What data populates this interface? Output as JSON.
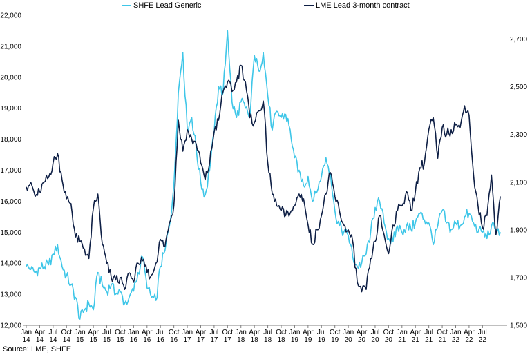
{
  "chart_data": {
    "type": "line",
    "legend_position": "top",
    "grid": false,
    "x_ticks": [
      {
        "month": "Jan",
        "year": "14"
      },
      {
        "month": "Apr",
        "year": "14"
      },
      {
        "month": "Jul",
        "year": "14"
      },
      {
        "month": "Oct",
        "year": "14"
      },
      {
        "month": "Jan",
        "year": "15"
      },
      {
        "month": "Apr",
        "year": "15"
      },
      {
        "month": "Jul",
        "year": "15"
      },
      {
        "month": "Oct",
        "year": "15"
      },
      {
        "month": "Jan",
        "year": "16"
      },
      {
        "month": "Apr",
        "year": "16"
      },
      {
        "month": "Jul",
        "year": "16"
      },
      {
        "month": "Oct",
        "year": "16"
      },
      {
        "month": "Jan",
        "year": "17"
      },
      {
        "month": "Apr",
        "year": "17"
      },
      {
        "month": "Jul",
        "year": "17"
      },
      {
        "month": "Oct",
        "year": "17"
      },
      {
        "month": "Jan",
        "year": "18"
      },
      {
        "month": "Apr",
        "year": "18"
      },
      {
        "month": "Jul",
        "year": "18"
      },
      {
        "month": "Oct",
        "year": "18"
      },
      {
        "month": "Jan",
        "year": "19"
      },
      {
        "month": "Apr",
        "year": "19"
      },
      {
        "month": "Jul",
        "year": "19"
      },
      {
        "month": "Oct",
        "year": "19"
      },
      {
        "month": "Jan",
        "year": "20"
      },
      {
        "month": "Apr",
        "year": "20"
      },
      {
        "month": "Jul",
        "year": "20"
      },
      {
        "month": "Oct",
        "year": "20"
      },
      {
        "month": "Jan",
        "year": "21"
      },
      {
        "month": "Apr",
        "year": "21"
      },
      {
        "month": "Jul",
        "year": "21"
      },
      {
        "month": "Oct",
        "year": "21"
      },
      {
        "month": "Jan",
        "year": "22"
      },
      {
        "month": "Apr",
        "year": "22"
      },
      {
        "month": "Jul",
        "year": "22"
      }
    ],
    "y_left": {
      "min": 12000,
      "max": 22000,
      "step": 1000,
      "tick_labels": [
        "12,000",
        "13,000",
        "14,000",
        "15,000",
        "16,000",
        "17,000",
        "18,000",
        "19,000",
        "20,000",
        "21,000",
        "22,000"
      ]
    },
    "y_right": {
      "min": 1500,
      "max": 2800,
      "step": 200,
      "tick_labels": [
        "1,500",
        "1,700",
        "1,900",
        "2,100",
        "2,300",
        "2,500",
        "2,700"
      ]
    },
    "series": [
      {
        "name": "SHFE Lead Generic",
        "axis": "left",
        "color": "#3ec6e8",
        "points": [
          [
            "2014-01",
            13900
          ],
          [
            "2014-02",
            13800
          ],
          [
            "2014-03",
            13700
          ],
          [
            "2014-04",
            13850
          ],
          [
            "2014-05",
            13900
          ],
          [
            "2014-06",
            13950
          ],
          [
            "2014-07",
            14300
          ],
          [
            "2014-08",
            14600
          ],
          [
            "2014-09",
            13900
          ],
          [
            "2014-10",
            13600
          ],
          [
            "2014-11",
            13300
          ],
          [
            "2014-12",
            12900
          ],
          [
            "2015-01",
            12200
          ],
          [
            "2015-02",
            12500
          ],
          [
            "2015-03",
            12700
          ],
          [
            "2015-04",
            12500
          ],
          [
            "2015-05",
            13700
          ],
          [
            "2015-06",
            13300
          ],
          [
            "2015-07",
            13100
          ],
          [
            "2015-08",
            13300
          ],
          [
            "2015-09",
            13000
          ],
          [
            "2015-10",
            13100
          ],
          [
            "2015-11",
            12700
          ],
          [
            "2015-12",
            12900
          ],
          [
            "2016-01",
            13100
          ],
          [
            "2016-02",
            13700
          ],
          [
            "2016-03",
            14200
          ],
          [
            "2016-04",
            13200
          ],
          [
            "2016-05",
            12900
          ],
          [
            "2016-06",
            12800
          ],
          [
            "2016-07",
            13900
          ],
          [
            "2016-08",
            14400
          ],
          [
            "2016-09",
            15200
          ],
          [
            "2016-10",
            16500
          ],
          [
            "2016-11",
            19500
          ],
          [
            "2016-12",
            20800
          ],
          [
            "2017-01",
            18300
          ],
          [
            "2017-02",
            18700
          ],
          [
            "2017-03",
            17700
          ],
          [
            "2017-04",
            16600
          ],
          [
            "2017-05",
            16200
          ],
          [
            "2017-06",
            17000
          ],
          [
            "2017-07",
            18200
          ],
          [
            "2017-08",
            19700
          ],
          [
            "2017-09",
            19500
          ],
          [
            "2017-10",
            21500
          ],
          [
            "2017-11",
            19200
          ],
          [
            "2017-12",
            18700
          ],
          [
            "2018-01",
            19200
          ],
          [
            "2018-02",
            19000
          ],
          [
            "2018-03",
            18700
          ],
          [
            "2018-04",
            20700
          ],
          [
            "2018-05",
            20200
          ],
          [
            "2018-06",
            20800
          ],
          [
            "2018-07",
            19400
          ],
          [
            "2018-08",
            18300
          ],
          [
            "2018-09",
            18900
          ],
          [
            "2018-10",
            18700
          ],
          [
            "2018-11",
            18800
          ],
          [
            "2018-12",
            18300
          ],
          [
            "2019-01",
            17400
          ],
          [
            "2019-02",
            17000
          ],
          [
            "2019-03",
            16500
          ],
          [
            "2019-04",
            16800
          ],
          [
            "2019-05",
            16000
          ],
          [
            "2019-06",
            16300
          ],
          [
            "2019-07",
            16800
          ],
          [
            "2019-08",
            17400
          ],
          [
            "2019-09",
            16900
          ],
          [
            "2019-10",
            15700
          ],
          [
            "2019-11",
            15200
          ],
          [
            "2019-12",
            15000
          ],
          [
            "2020-01",
            14900
          ],
          [
            "2020-02",
            14200
          ],
          [
            "2020-03",
            13900
          ],
          [
            "2020-04",
            14000
          ],
          [
            "2020-05",
            14300
          ],
          [
            "2020-06",
            15000
          ],
          [
            "2020-07",
            15800
          ],
          [
            "2020-08",
            16000
          ],
          [
            "2020-09",
            15300
          ],
          [
            "2020-10",
            14800
          ],
          [
            "2020-11",
            14700
          ],
          [
            "2020-12",
            15200
          ],
          [
            "2021-01",
            15000
          ],
          [
            "2021-02",
            15200
          ],
          [
            "2021-03",
            15100
          ],
          [
            "2021-04",
            15300
          ],
          [
            "2021-05",
            15600
          ],
          [
            "2021-06",
            15400
          ],
          [
            "2021-07",
            15300
          ],
          [
            "2021-08",
            14600
          ],
          [
            "2021-09",
            15200
          ],
          [
            "2021-10",
            15700
          ],
          [
            "2021-11",
            15300
          ],
          [
            "2021-12",
            15100
          ],
          [
            "2022-01",
            15300
          ],
          [
            "2022-02",
            15200
          ],
          [
            "2022-03",
            15500
          ],
          [
            "2022-04",
            15600
          ],
          [
            "2022-05",
            15300
          ],
          [
            "2022-06",
            15000
          ],
          [
            "2022-07",
            15000
          ],
          [
            "2022-08",
            14800
          ],
          [
            "2022-09",
            15200
          ],
          [
            "2022-10",
            15100
          ],
          [
            "2022-11",
            15000
          ]
        ]
      },
      {
        "name": "LME Lead 3-month contract",
        "axis": "right",
        "color": "#0e1f45",
        "points": [
          [
            "2014-01",
            2080
          ],
          [
            "2014-02",
            2100
          ],
          [
            "2014-03",
            2040
          ],
          [
            "2014-04",
            2060
          ],
          [
            "2014-05",
            2100
          ],
          [
            "2014-06",
            2120
          ],
          [
            "2014-07",
            2180
          ],
          [
            "2014-08",
            2220
          ],
          [
            "2014-09",
            2110
          ],
          [
            "2014-10",
            2030
          ],
          [
            "2014-11",
            2010
          ],
          [
            "2014-12",
            1870
          ],
          [
            "2015-01",
            1850
          ],
          [
            "2015-02",
            1820
          ],
          [
            "2015-03",
            1780
          ],
          [
            "2015-04",
            1990
          ],
          [
            "2015-05",
            2050
          ],
          [
            "2015-06",
            1840
          ],
          [
            "2015-07",
            1760
          ],
          [
            "2015-08",
            1700
          ],
          [
            "2015-09",
            1690
          ],
          [
            "2015-10",
            1700
          ],
          [
            "2015-11",
            1650
          ],
          [
            "2015-12",
            1720
          ],
          [
            "2016-01",
            1680
          ],
          [
            "2016-02",
            1760
          ],
          [
            "2016-03",
            1770
          ],
          [
            "2016-04",
            1720
          ],
          [
            "2016-05",
            1710
          ],
          [
            "2016-06",
            1760
          ],
          [
            "2016-07",
            1860
          ],
          [
            "2016-08",
            1830
          ],
          [
            "2016-09",
            1930
          ],
          [
            "2016-10",
            2000
          ],
          [
            "2016-11",
            2360
          ],
          [
            "2016-12",
            2230
          ],
          [
            "2017-01",
            2320
          ],
          [
            "2017-02",
            2280
          ],
          [
            "2017-03",
            2260
          ],
          [
            "2017-04",
            2180
          ],
          [
            "2017-05",
            2110
          ],
          [
            "2017-06",
            2180
          ],
          [
            "2017-07",
            2310
          ],
          [
            "2017-08",
            2360
          ],
          [
            "2017-09",
            2480
          ],
          [
            "2017-10",
            2520
          ],
          [
            "2017-11",
            2480
          ],
          [
            "2017-12",
            2520
          ],
          [
            "2018-01",
            2590
          ],
          [
            "2018-02",
            2520
          ],
          [
            "2018-03",
            2370
          ],
          [
            "2018-04",
            2350
          ],
          [
            "2018-05",
            2400
          ],
          [
            "2018-06",
            2440
          ],
          [
            "2018-07",
            2180
          ],
          [
            "2018-08",
            2050
          ],
          [
            "2018-09",
            2000
          ],
          [
            "2018-10",
            1980
          ],
          [
            "2018-11",
            1960
          ],
          [
            "2018-12",
            1970
          ],
          [
            "2019-01",
            2000
          ],
          [
            "2019-02",
            2050
          ],
          [
            "2019-03",
            2030
          ],
          [
            "2019-04",
            1920
          ],
          [
            "2019-05",
            1840
          ],
          [
            "2019-06",
            1900
          ],
          [
            "2019-07",
            1960
          ],
          [
            "2019-08",
            2050
          ],
          [
            "2019-09",
            2140
          ],
          [
            "2019-10",
            2040
          ],
          [
            "2019-11",
            1980
          ],
          [
            "2019-12",
            1920
          ],
          [
            "2020-01",
            1900
          ],
          [
            "2020-02",
            1850
          ],
          [
            "2020-03",
            1680
          ],
          [
            "2020-04",
            1640
          ],
          [
            "2020-05",
            1650
          ],
          [
            "2020-06",
            1780
          ],
          [
            "2020-07",
            1850
          ],
          [
            "2020-08",
            1960
          ],
          [
            "2020-09",
            1880
          ],
          [
            "2020-10",
            1800
          ],
          [
            "2020-11",
            1920
          ],
          [
            "2020-12",
            1980
          ],
          [
            "2021-01",
            2000
          ],
          [
            "2021-02",
            2060
          ],
          [
            "2021-03",
            1980
          ],
          [
            "2021-04",
            2060
          ],
          [
            "2021-05",
            2160
          ],
          [
            "2021-06",
            2180
          ],
          [
            "2021-07",
            2320
          ],
          [
            "2021-08",
            2370
          ],
          [
            "2021-09",
            2200
          ],
          [
            "2021-10",
            2330
          ],
          [
            "2021-11",
            2300
          ],
          [
            "2021-12",
            2320
          ],
          [
            "2022-01",
            2340
          ],
          [
            "2022-02",
            2330
          ],
          [
            "2022-03",
            2420
          ],
          [
            "2022-04",
            2380
          ],
          [
            "2022-05",
            2130
          ],
          [
            "2022-06",
            2000
          ],
          [
            "2022-07",
            1910
          ],
          [
            "2022-08",
            1960
          ],
          [
            "2022-09",
            2130
          ],
          [
            "2022-10",
            1880
          ],
          [
            "2022-11",
            2040
          ]
        ]
      }
    ]
  },
  "legend": {
    "shfe_label": "SHFE Lead Generic",
    "lme_label": "LME Lead 3-month contract",
    "shfe_color": "#3ec6e8",
    "lme_color": "#0e1f45"
  },
  "source": "Source: LME, SHFE"
}
